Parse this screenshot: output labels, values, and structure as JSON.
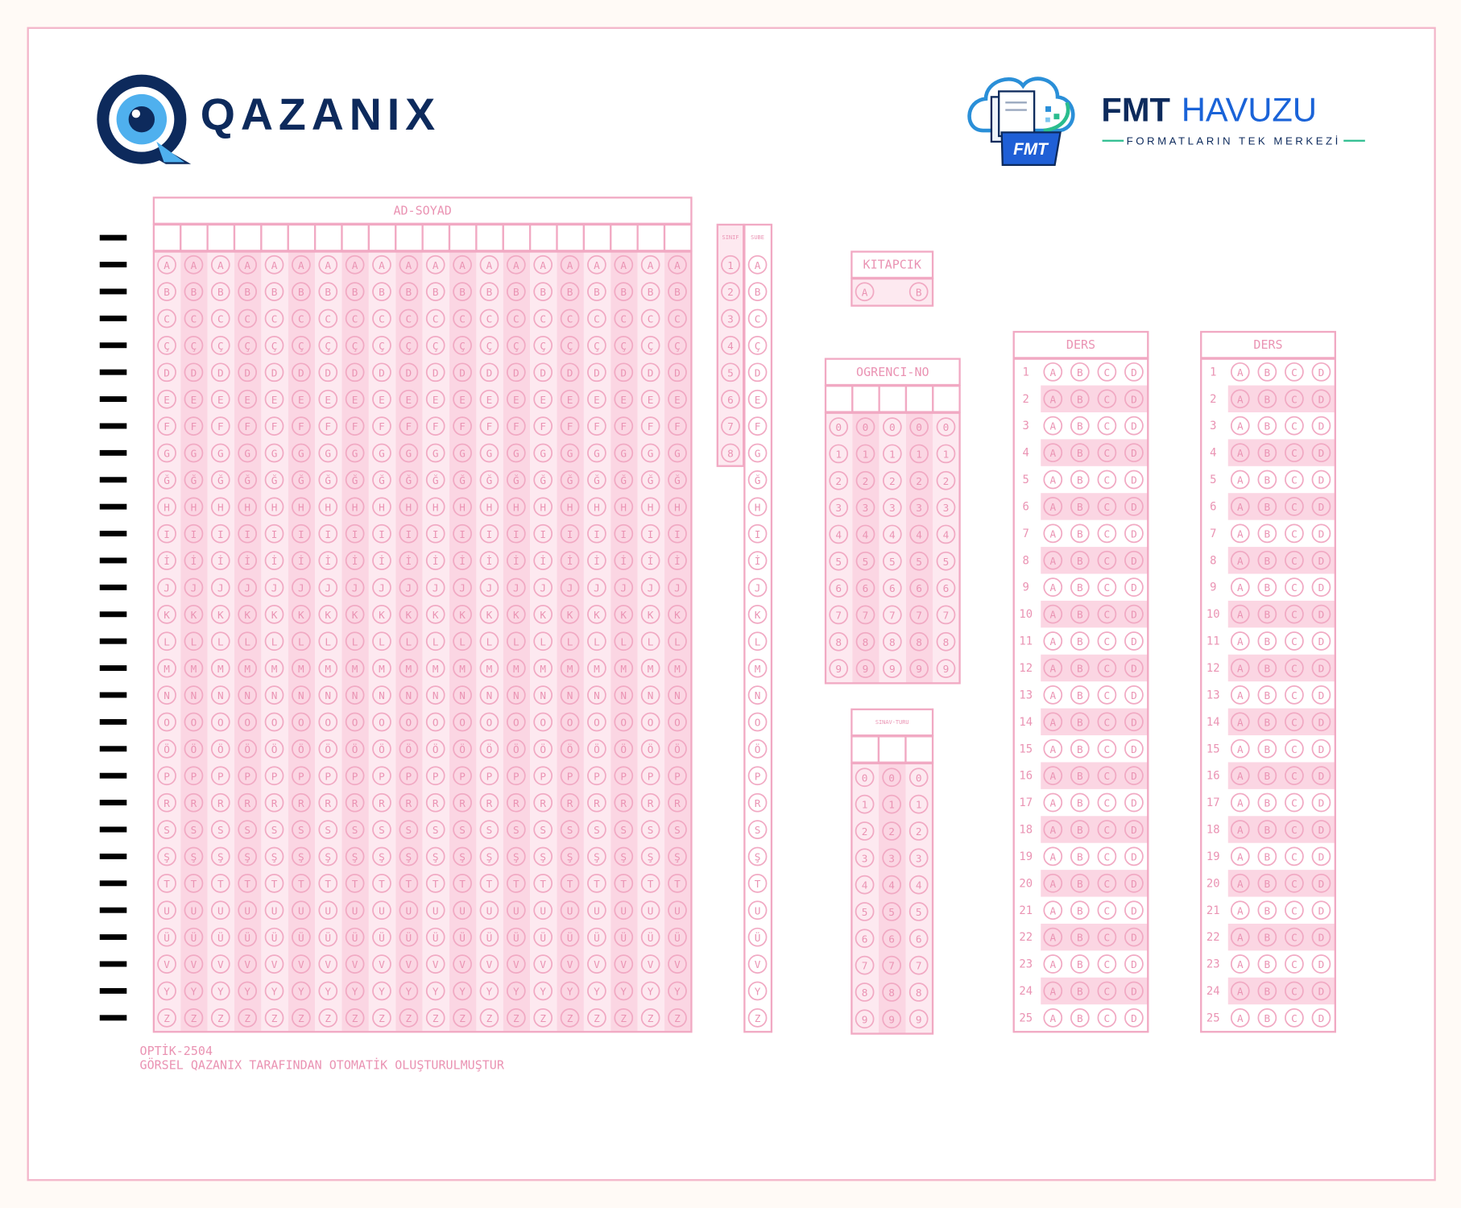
{
  "header": {
    "brand": "QAZANIX",
    "partner_name_1": "FMT",
    "partner_name_2": "HAVUZU",
    "partner_tagline": "FORMATLARIN TEK MERKEZİ",
    "icon_badge": "FMT"
  },
  "alphabet": [
    "A",
    "B",
    "C",
    "Ç",
    "D",
    "E",
    "F",
    "G",
    "Ğ",
    "H",
    "I",
    "İ",
    "J",
    "K",
    "L",
    "M",
    "N",
    "O",
    "Ö",
    "P",
    "R",
    "S",
    "Ş",
    "T",
    "U",
    "Ü",
    "V",
    "Y",
    "Z"
  ],
  "digits": [
    "0",
    "1",
    "2",
    "3",
    "4",
    "5",
    "6",
    "7",
    "8",
    "9"
  ],
  "sections": {
    "ad_soyad": {
      "title": "AD-SOYAD"
    },
    "sinif": {
      "title": "SINIF"
    },
    "sube": {
      "title": "SUBE"
    },
    "kitapcik": {
      "title": "KITAPCIK"
    },
    "ogrenci_no": {
      "title": "OGRENCI-NO"
    },
    "sinav_turu": {
      "title": "SINAV-TURU"
    },
    "ders": [
      {
        "title": "DERS"
      },
      {
        "title": "DERS"
      }
    ]
  },
  "question_numbers": [
    1,
    2,
    3,
    4,
    5,
    6,
    7,
    8,
    9,
    10,
    11,
    12,
    13,
    14,
    15,
    16,
    17,
    18,
    19,
    20,
    21,
    22,
    23,
    24,
    25
  ],
  "answer_options": [
    "A",
    "B",
    "C",
    "D"
  ],
  "footer": {
    "code": "OPTİK-2504",
    "note": "GÖRSEL QAZANIX TARAFINDAN OTOMATİK OLUŞTURULMUŞTUR"
  }
}
